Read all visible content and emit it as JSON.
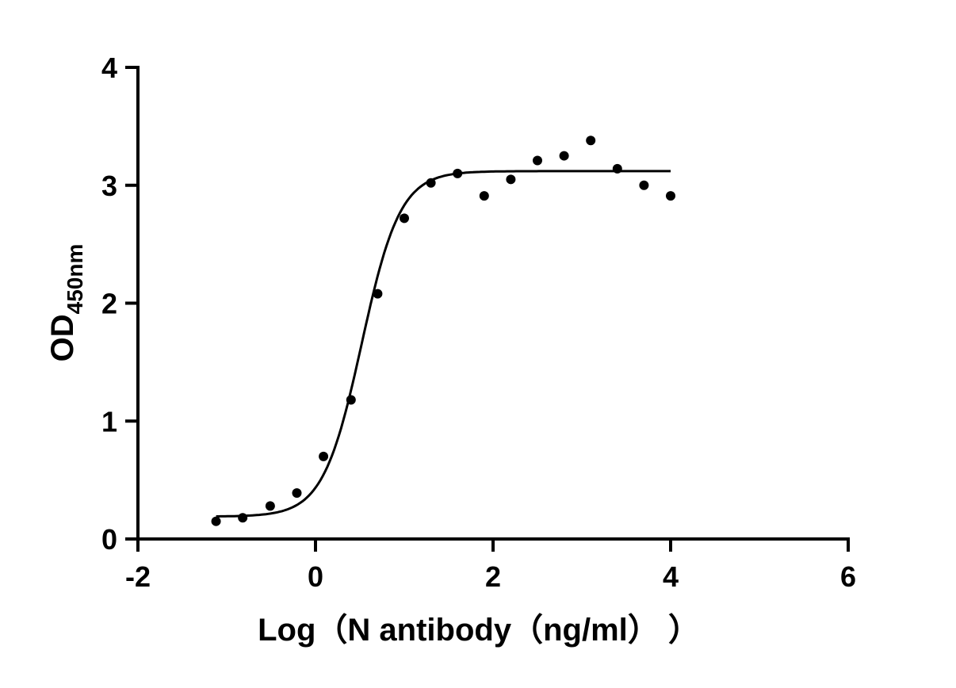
{
  "chart_data": {
    "type": "scatter",
    "title": "",
    "xlabel": "Log（N antibody（ng/ml）  ）",
    "ylabel_main": "OD",
    "ylabel_sub": "450nm",
    "xlim": [
      -2,
      6
    ],
    "ylim": [
      0,
      4
    ],
    "xticks": [
      -2,
      0,
      2,
      4,
      6
    ],
    "yticks": [
      0,
      1,
      2,
      3,
      4
    ],
    "grid": false,
    "colors": {
      "points": "#000000",
      "curve": "#000000"
    },
    "points": {
      "x": [
        -1.12,
        -0.82,
        -0.51,
        -0.21,
        0.09,
        0.4,
        0.7,
        1.0,
        1.3,
        1.6,
        1.9,
        2.2,
        2.5,
        2.8,
        3.1,
        3.4,
        3.7,
        4.0
      ],
      "y": [
        0.15,
        0.18,
        0.28,
        0.39,
        0.7,
        1.18,
        2.08,
        2.72,
        3.02,
        3.1,
        2.91,
        3.05,
        3.21,
        3.25,
        3.38,
        3.14,
        3.0,
        2.91
      ]
    },
    "fit": {
      "model": "four-parameter logistic",
      "bottom": 0.19,
      "top": 3.12,
      "logEC50": 0.52,
      "hill": 2.0,
      "x_range": [
        -1.12,
        4.0
      ]
    }
  }
}
